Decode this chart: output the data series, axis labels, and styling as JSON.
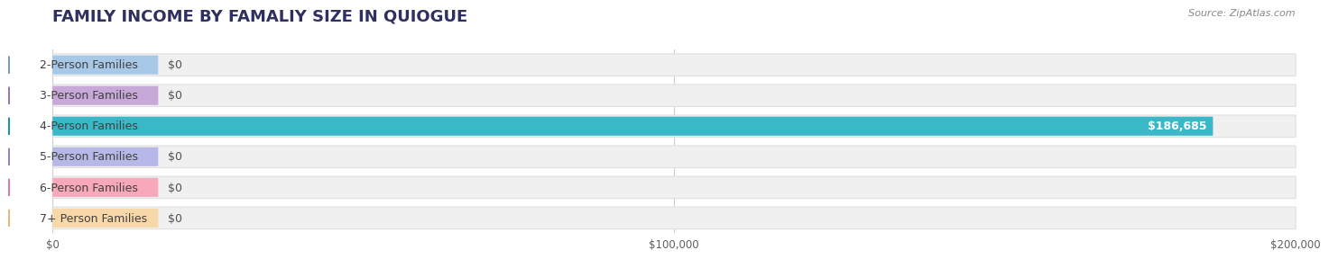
{
  "title": "FAMILY INCOME BY FAMALIY SIZE IN QUIOGUE",
  "source": "Source: ZipAtlas.com",
  "categories": [
    "2-Person Families",
    "3-Person Families",
    "4-Person Families",
    "5-Person Families",
    "6-Person Families",
    "7+ Person Families"
  ],
  "values": [
    0,
    0,
    186685,
    0,
    0,
    0
  ],
  "bar_colors": [
    "#a8c8e8",
    "#c8a8d8",
    "#3ab8c8",
    "#b8b8e8",
    "#f8a8b8",
    "#f8d8a8"
  ],
  "dot_colors": [
    "#7898c8",
    "#9878b8",
    "#1a9898",
    "#8888c8",
    "#e87898",
    "#e8b878"
  ],
  "bar_track_color": "#f0f0f0",
  "bar_track_edge_color": "#e0e0e0",
  "xlim": [
    0,
    200000
  ],
  "xticks": [
    0,
    100000,
    200000
  ],
  "xtick_labels": [
    "$0",
    "$100,000",
    "$200,000"
  ],
  "value_labels": [
    "$0",
    "$0",
    "$186,685",
    "$0",
    "$0",
    "$0"
  ],
  "background_color": "#ffffff",
  "title_color": "#303060",
  "title_fontsize": 13,
  "label_fontsize": 9,
  "tick_fontsize": 8.5,
  "source_fontsize": 8
}
